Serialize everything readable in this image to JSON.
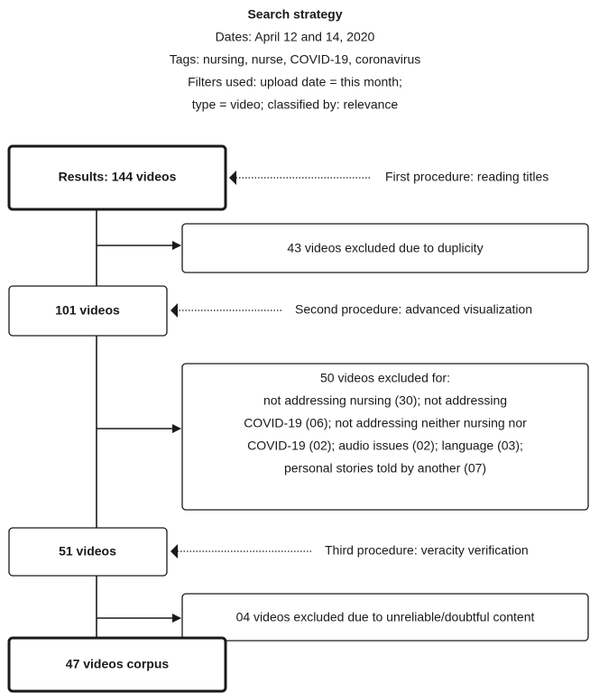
{
  "header": {
    "title": "Search strategy",
    "lines": [
      "Dates: April 12 and 14, 2020",
      "Tags: nursing, nurse, COVID-19, coronavirus",
      "Filters used:  upload date = this month;",
      "type = video; classified by: relevance"
    ]
  },
  "nodes": [
    {
      "label": "Results: 144 videos",
      "note": "First procedure: reading titles"
    },
    {
      "label": "43 videos excluded due to duplicity"
    },
    {
      "label": "101 videos",
      "note": "Second procedure: advanced visualization"
    },
    {
      "lines": [
        "50 videos excluded for:",
        "not addressing nursing (30); not addressing",
        "COVID-19 (06); not addressing neither nursing nor",
        "COVID-19 (02); audio issues (02); language (03);",
        "personal stories told by another (07)"
      ]
    },
    {
      "label": "51 videos",
      "note": "Third procedure: veracity verification"
    },
    {
      "label": "04 videos excluded due to unreliable/doubtful content"
    },
    {
      "label": "47 videos corpus"
    }
  ]
}
